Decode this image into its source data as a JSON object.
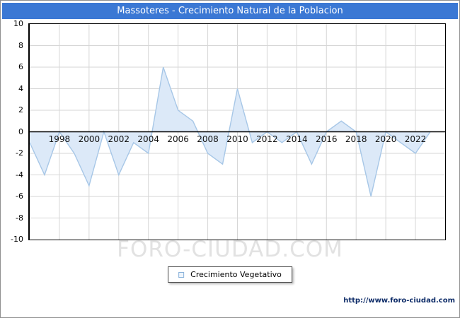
{
  "window": {
    "title": "Massoteres - Crecimiento Natural de la Poblacion",
    "titlebar_bg": "#3b78d4"
  },
  "chart_data": {
    "type": "area",
    "title": "Massoteres - Crecimiento Natural de la Poblacion",
    "x": [
      1996,
      1997,
      1998,
      1999,
      2000,
      2001,
      2002,
      2003,
      2004,
      2005,
      2006,
      2007,
      2008,
      2009,
      2010,
      2011,
      2012,
      2013,
      2014,
      2015,
      2016,
      2017,
      2018,
      2019,
      2020,
      2021,
      2022,
      2023
    ],
    "values": [
      -1,
      -4,
      0,
      -2,
      -5,
      0,
      -4,
      -1,
      -2,
      6,
      2,
      1,
      -2,
      -3,
      4,
      -1,
      0,
      -1,
      0,
      -3,
      0,
      1,
      0,
      -6,
      0,
      -1,
      -2,
      0
    ],
    "series_name": "Crecimiento Vegetativo",
    "xlabel": "",
    "ylabel": "",
    "ylim": [
      -10,
      10
    ],
    "xlim": [
      1996,
      2024
    ],
    "y_ticks": [
      10,
      8,
      6,
      4,
      2,
      0,
      -2,
      -4,
      -6,
      -8,
      -10
    ],
    "x_ticks": [
      1998,
      2000,
      2002,
      2004,
      2006,
      2008,
      2010,
      2012,
      2014,
      2016,
      2018,
      2020,
      2022
    ],
    "grid": true,
    "legend_position": "bottom",
    "colors": {
      "area_fill": "#dce9f8",
      "line": "#a7c7e7",
      "gridline": "#d6d6d6",
      "zero_axis": "#000000",
      "plot_border": "#000000"
    }
  },
  "legend": {
    "label": "Crecimiento Vegetativo"
  },
  "watermark": {
    "text": "FORO-CIUDAD.COM"
  },
  "footer": {
    "url": "http://www.foro-ciudad.com"
  }
}
